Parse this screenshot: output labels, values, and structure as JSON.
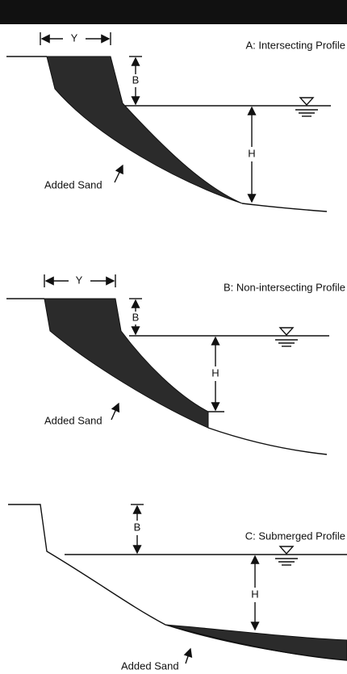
{
  "panels": [
    {
      "title": "A: Intersecting Profile",
      "width_label": "Y",
      "berm_label": "B",
      "depth_label": "H",
      "fill_label": "Added Sand"
    },
    {
      "title": "B: Non-intersecting Profile",
      "width_label": "Y",
      "berm_label": "B",
      "depth_label": "H",
      "fill_label": "Added Sand"
    },
    {
      "title": "C: Submerged Profile",
      "berm_label": "B",
      "depth_label": "H",
      "fill_label": "Added Sand"
    }
  ]
}
